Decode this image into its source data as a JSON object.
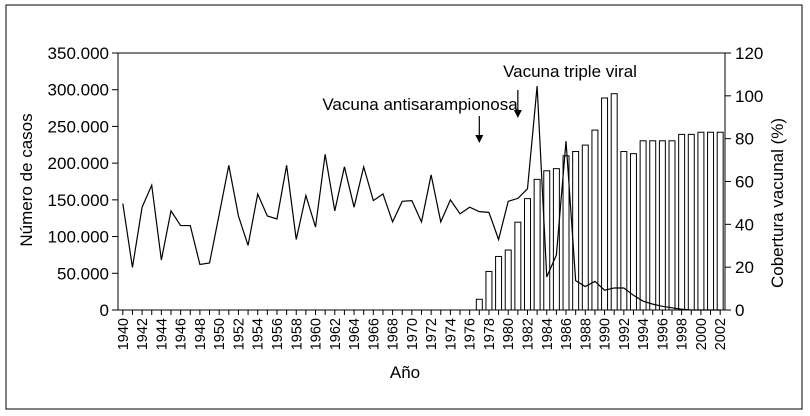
{
  "chart_data": {
    "type": "bar+line",
    "title": "",
    "xlabel": "Año",
    "ylabel_left": "Número de casos",
    "ylabel_right": "Cobertura vacunal (%)",
    "ylim_left": [
      0,
      350000
    ],
    "ylim_right": [
      0,
      120
    ],
    "yticks_left": [
      "0",
      "50.000",
      "100.000",
      "150.000",
      "200.000",
      "250.000",
      "300.000",
      "350.000"
    ],
    "yticks_left_values": [
      0,
      50000,
      100000,
      150000,
      200000,
      250000,
      300000,
      350000
    ],
    "yticks_right": [
      "0",
      "20",
      "40",
      "60",
      "80",
      "100",
      "120"
    ],
    "yticks_right_values": [
      0,
      20,
      40,
      60,
      80,
      100,
      120
    ],
    "x_start": 1940,
    "x_end": 2002,
    "xtick_labels": [
      "1940",
      "1942",
      "1944",
      "1946",
      "1948",
      "1950",
      "1952",
      "1954",
      "1956",
      "1958",
      "1960",
      "1962",
      "1964",
      "1966",
      "1968",
      "1970",
      "1972",
      "1974",
      "1976",
      "1978",
      "1980",
      "1982",
      "1984",
      "1986",
      "1988",
      "1990",
      "1992",
      "1994",
      "1996",
      "1998",
      "2000",
      "2002"
    ],
    "grid": false,
    "legend": "none",
    "series": [
      {
        "type": "line",
        "axis": "left",
        "color": "#000000",
        "x": [
          1940,
          1941,
          1942,
          1943,
          1944,
          1945,
          1946,
          1947,
          1948,
          1949,
          1950,
          1951,
          1952,
          1953,
          1954,
          1955,
          1956,
          1957,
          1958,
          1959,
          1960,
          1961,
          1962,
          1963,
          1964,
          1965,
          1966,
          1967,
          1968,
          1969,
          1970,
          1971,
          1972,
          1973,
          1974,
          1975,
          1976,
          1977,
          1978,
          1979,
          1980,
          1981,
          1982,
          1983,
          1984,
          1985,
          1986,
          1987,
          1988,
          1989,
          1990,
          1991,
          1992,
          1993,
          1994,
          1995,
          1996,
          1997,
          1998,
          1999,
          2000,
          2001,
          2002
        ],
        "values": [
          145000,
          58000,
          140000,
          170000,
          68000,
          135000,
          115000,
          115000,
          62000,
          64000,
          130000,
          197000,
          128000,
          88000,
          158000,
          128000,
          124000,
          197000,
          96000,
          156000,
          113000,
          212000,
          135000,
          195000,
          140000,
          195000,
          149000,
          158000,
          120000,
          148000,
          149000,
          120000,
          184000,
          120000,
          150000,
          131000,
          140000,
          134000,
          133000,
          96000,
          148000,
          152000,
          165000,
          305000,
          45000,
          75000,
          230000,
          40000,
          32000,
          39000,
          27000,
          30000,
          30000,
          20000,
          12000,
          8000,
          5000,
          3000,
          1000,
          0,
          0,
          0,
          0
        ]
      },
      {
        "type": "bar",
        "axis": "right",
        "color": "#ffffff",
        "x": [
          1977,
          1978,
          1979,
          1980,
          1981,
          1982,
          1983,
          1984,
          1985,
          1986,
          1987,
          1988,
          1989,
          1990,
          1991,
          1992,
          1993,
          1994,
          1995,
          1996,
          1997,
          1998,
          1999,
          2000,
          2001,
          2002
        ],
        "values": [
          5,
          18,
          25,
          28,
          41,
          52,
          61,
          65,
          66,
          72,
          74,
          77,
          84,
          99,
          101,
          74,
          73,
          79,
          79,
          79,
          79,
          82,
          82,
          83,
          83,
          83
        ]
      }
    ],
    "annotations": [
      {
        "text": "Vacuna antisarampionosa",
        "x": 1977
      },
      {
        "text": "Vacuna triple viral",
        "x": 1981
      }
    ]
  }
}
